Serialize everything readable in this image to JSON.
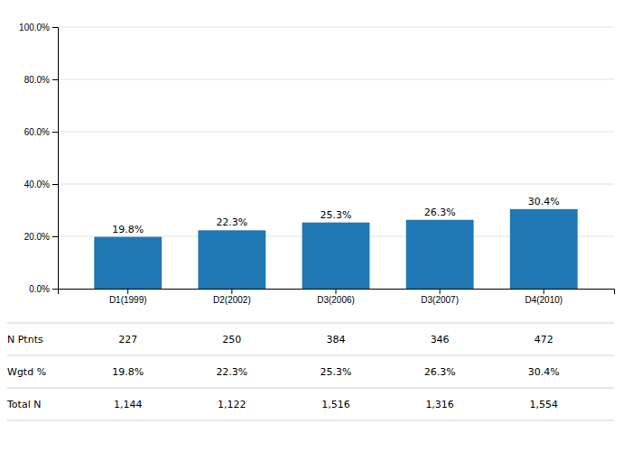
{
  "chart_data": {
    "type": "bar",
    "categories": [
      "D1(1999)",
      "D2(2002)",
      "D3(2006)",
      "D3(2007)",
      "D4(2010)"
    ],
    "values": [
      19.8,
      22.3,
      25.3,
      26.3,
      30.4
    ],
    "value_labels": [
      "19.8%",
      "22.3%",
      "25.3%",
      "26.3%",
      "30.4%"
    ],
    "data_labels": true,
    "ylim": [
      0,
      100
    ],
    "yticks": [
      {
        "value": 0,
        "label": "0.0%"
      },
      {
        "value": 20,
        "label": "20.0%"
      },
      {
        "value": 40,
        "label": "40.0%"
      },
      {
        "value": 60,
        "label": "60.0%"
      },
      {
        "value": 80,
        "label": "80.0%"
      },
      {
        "value": 100,
        "label": "100.0%"
      }
    ],
    "grid": true,
    "table": [
      {
        "label": "N Ptnts",
        "values": [
          227,
          250,
          384,
          346,
          472
        ]
      },
      {
        "label": "Wgtd %",
        "values": [
          19.8,
          22.3,
          25.3,
          26.3,
          30.4
        ],
        "value_labels": [
          "19.8%",
          "22.3%",
          "25.3%",
          "26.3%",
          "30.4%"
        ]
      },
      {
        "label": "Total N",
        "values": [
          1144,
          1122,
          1516,
          1316,
          1554
        ],
        "value_labels": [
          "1,144",
          "1,122",
          "1,516",
          "1,316",
          "1,554"
        ]
      }
    ]
  }
}
